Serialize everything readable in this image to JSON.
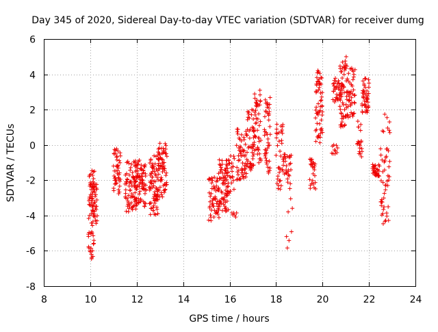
{
  "chart_data": {
    "type": "scatter",
    "title": "Day 345 of 2020, Sidereal Day-to-day VTEC variation (SDTVAR) for receiver dumg",
    "xlabel": "GPS time / hours",
    "ylabel": "SDTVAR / TECUs",
    "xlim": [
      8,
      24
    ],
    "ylim": [
      -8,
      6
    ],
    "xticks": [
      8,
      10,
      12,
      14,
      16,
      18,
      20,
      22,
      24
    ],
    "yticks": [
      -8,
      -6,
      -4,
      -2,
      0,
      2,
      4,
      6
    ],
    "grid": true,
    "marker": "+",
    "color": "#ee0000",
    "series": [
      {
        "name": "SDTVAR",
        "segments": [
          {
            "x": [
              9.92,
              10.18
            ],
            "y": [
              -6.5,
              -1.4
            ],
            "n": 55
          },
          {
            "x": [
              10.05,
              10.3
            ],
            "y": [
              -4.6,
              -2.2
            ],
            "n": 40
          },
          {
            "x": [
              11.0,
              11.3
            ],
            "y": [
              -2.8,
              -0.2
            ],
            "n": 45
          },
          {
            "x": [
              11.5,
              12.0
            ],
            "y": [
              -3.8,
              -0.9
            ],
            "n": 70
          },
          {
            "x": [
              11.9,
              12.4
            ],
            "y": [
              -3.5,
              -0.7
            ],
            "n": 85
          },
          {
            "x": [
              12.55,
              12.95
            ],
            "y": [
              -4.0,
              -0.6
            ],
            "n": 80
          },
          {
            "x": [
              12.9,
              13.3
            ],
            "y": [
              -3.0,
              0.1
            ],
            "n": 65
          },
          {
            "x": [
              15.1,
              15.55
            ],
            "y": [
              -4.3,
              -1.8
            ],
            "n": 55
          },
          {
            "x": [
              15.5,
              15.95
            ],
            "y": [
              -3.8,
              -0.8
            ],
            "n": 65
          },
          {
            "x": [
              15.8,
              16.2
            ],
            "y": [
              -2.8,
              -0.6
            ],
            "n": 35
          },
          {
            "x": [
              16.1,
              16.3
            ],
            "y": [
              -4.1,
              -3.8
            ],
            "n": 6
          },
          {
            "x": [
              16.3,
              16.75
            ],
            "y": [
              -2.0,
              0.9
            ],
            "n": 60
          },
          {
            "x": [
              16.75,
              17.05
            ],
            "y": [
              -1.5,
              2.0
            ],
            "n": 40
          },
          {
            "x": [
              17.0,
              17.35
            ],
            "y": [
              -1.2,
              3.1
            ],
            "n": 55
          },
          {
            "x": [
              17.5,
              17.75
            ],
            "y": [
              -1.6,
              2.8
            ],
            "n": 45
          },
          {
            "x": [
              18.0,
              18.3
            ],
            "y": [
              -2.6,
              1.2
            ],
            "n": 35
          },
          {
            "x": [
              18.3,
              18.65
            ],
            "y": [
              -2.2,
              -0.5
            ],
            "n": 30
          },
          {
            "x": [
              18.45,
              18.7
            ],
            "y": [
              -5.9,
              -2.4
            ],
            "n": 8
          },
          {
            "x": [
              19.45,
              19.7
            ],
            "y": [
              -2.5,
              -0.8
            ],
            "n": 25
          },
          {
            "x": [
              19.7,
              20.0
            ],
            "y": [
              0.0,
              4.3
            ],
            "n": 60
          },
          {
            "x": [
              20.4,
              20.65
            ],
            "y": [
              -0.6,
              0.0
            ],
            "n": 10
          },
          {
            "x": [
              20.45,
              20.85
            ],
            "y": [
              2.4,
              3.8
            ],
            "n": 40
          },
          {
            "x": [
              20.75,
              21.05
            ],
            "y": [
              1.0,
              5.0
            ],
            "n": 50
          },
          {
            "x": [
              21.05,
              21.4
            ],
            "y": [
              1.5,
              4.4
            ],
            "n": 45
          },
          {
            "x": [
              21.5,
              21.7
            ],
            "y": [
              -0.9,
              1.5
            ],
            "n": 20
          },
          {
            "x": [
              21.7,
              22.0
            ],
            "y": [
              1.8,
              3.8
            ],
            "n": 45
          },
          {
            "x": [
              22.15,
              22.45
            ],
            "y": [
              -1.8,
              -1.1
            ],
            "n": 30
          },
          {
            "x": [
              22.5,
              22.9
            ],
            "y": [
              -4.5,
              1.8
            ],
            "n": 50
          }
        ]
      }
    ]
  }
}
